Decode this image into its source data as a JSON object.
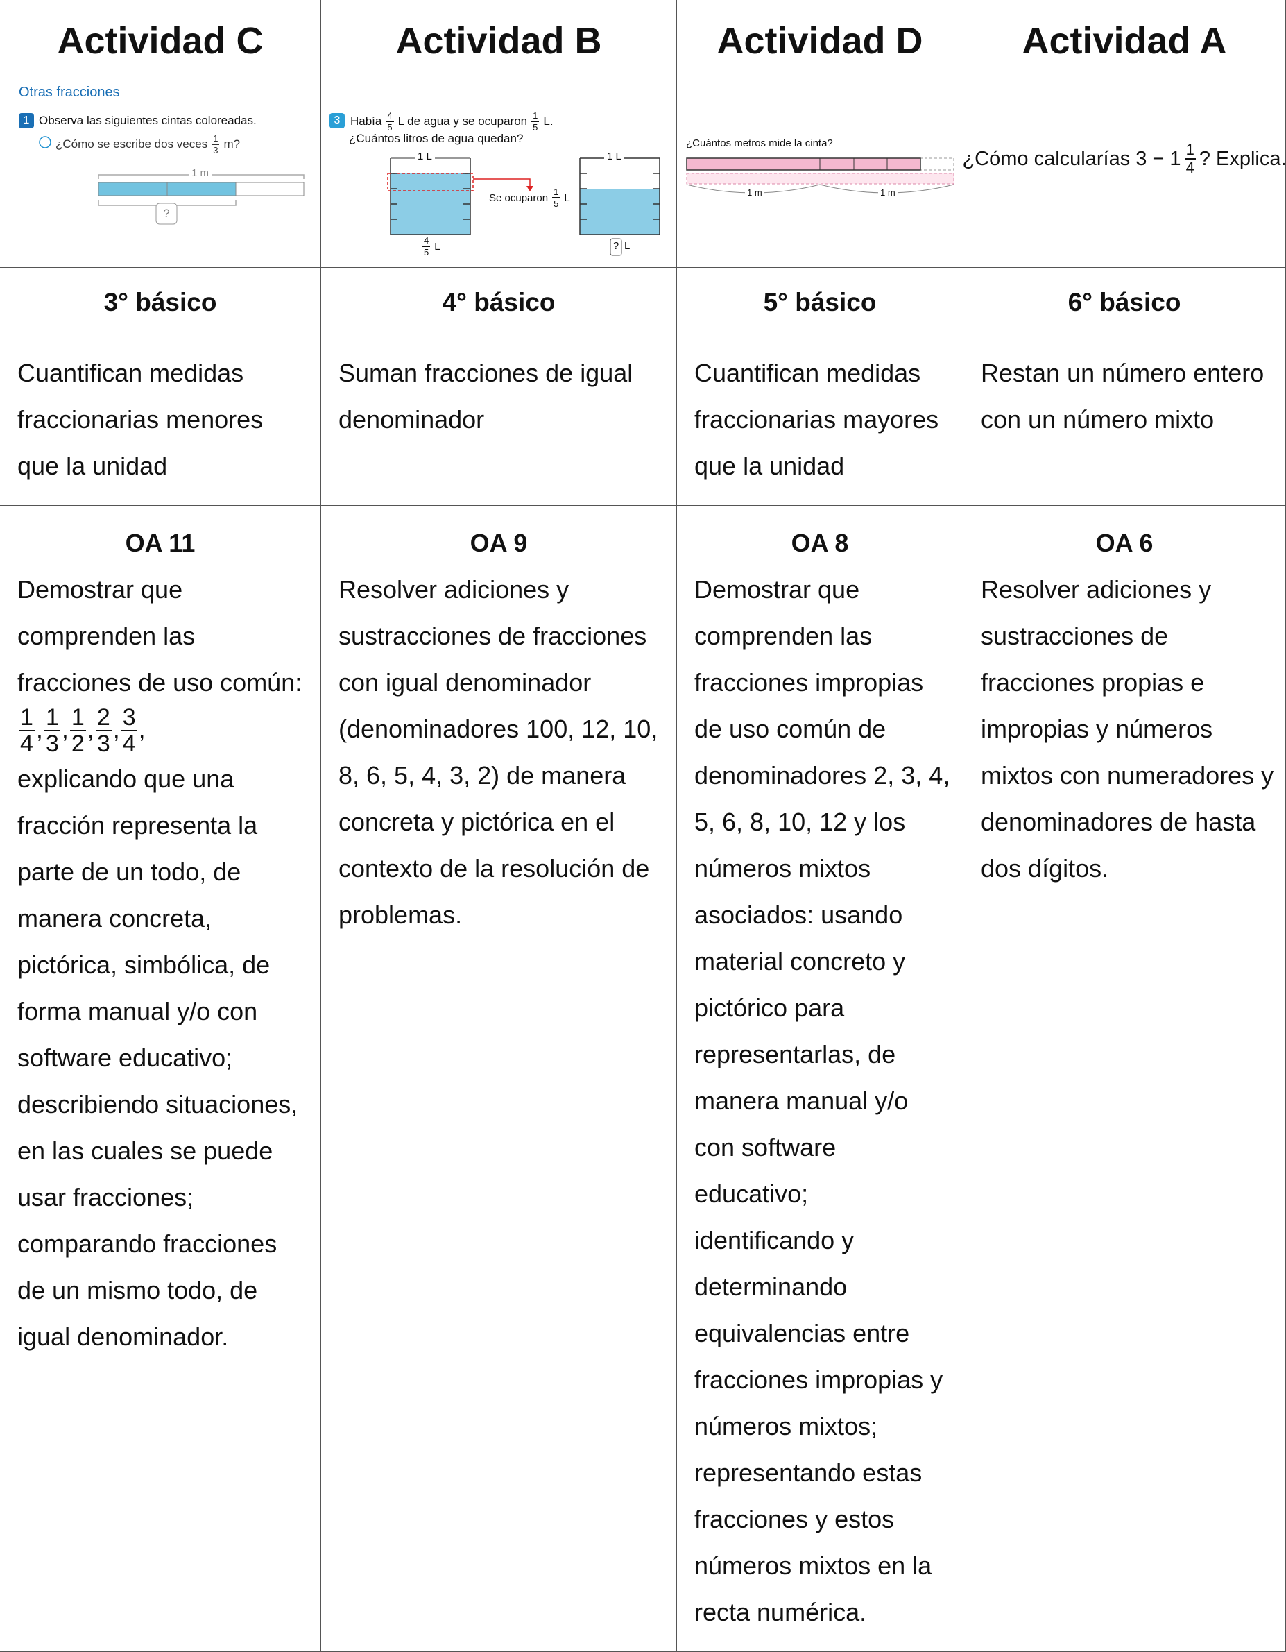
{
  "columns": [
    {
      "title": "Actividad C",
      "grade": "3° básico",
      "description": "Cuantifican medidas fraccionarias menores que la unidad",
      "oa_code": "OA 11",
      "oa_text_before": "Demostrar que comprenden las fracciones de uso común:",
      "oa_fractions": [
        {
          "numerator": "1",
          "denominator": "4"
        },
        {
          "numerator": "1",
          "denominator": "3"
        },
        {
          "numerator": "1",
          "denominator": "2"
        },
        {
          "numerator": "2",
          "denominator": "3"
        },
        {
          "numerator": "3",
          "denominator": "4"
        }
      ],
      "oa_fraction_separator": ",",
      "oa_text_after": "explicando que una fracción representa la parte de un todo, de manera concreta, pictórica, simbólica, de forma manual y/o con software educativo; describiendo situaciones, en las cuales se puede usar fracciones; comparando fracciones de un mismo todo, de igual denominador.",
      "illustration": {
        "section": "Otras fracciones",
        "step": "1",
        "instruction": "Observa las siguientes cintas coloreadas.",
        "question_before": "¿Cómo se escribe dos veces",
        "fraction": {
          "numerator": "1",
          "denominator": "3"
        },
        "question_after": "m?",
        "tape_label": "1 m",
        "unknown": "?"
      }
    },
    {
      "title": "Actividad B",
      "grade": "4° básico",
      "description": "Suman fracciones de igual denominador",
      "oa_code": "OA 9",
      "oa_text": "Resolver adiciones y sustracciones de fracciones con igual denominador (denominadores 100, 12, 10, 8, 6, 5, 4, 3, 2) de manera concreta y pictórica en el contexto de la resolución de problemas.",
      "illustration": {
        "step": "3",
        "text_1": "Había",
        "fraction_1": {
          "numerator": "4",
          "denominator": "5"
        },
        "text_2": "L de agua y se ocuparon",
        "fraction_2": {
          "numerator": "1",
          "denominator": "5"
        },
        "text_3": "L.",
        "question": "¿Cuántos litros de agua quedan?",
        "container_label": "1 L",
        "used_label": "Se ocuparon",
        "used_fraction": {
          "numerator": "1",
          "denominator": "5"
        },
        "unit": "L",
        "initial_fraction": {
          "numerator": "4",
          "denominator": "5"
        },
        "unknown": "?"
      }
    },
    {
      "title": "Actividad D",
      "grade": "5° básico",
      "description": "Cuantifican medidas fraccionarias mayores que la unidad",
      "oa_code": "OA 8",
      "oa_text": "Demostrar que comprenden las fracciones impropias de uso común de denominadores 2, 3, 4, 5, 6, 8, 10, 12 y los números mixtos asociados: usando material concreto y pictórico para representarlas, de manera manual y/o con software educativo; identificando y determinando equivalencias entre fracciones impropias y números mixtos; representando estas fracciones y estos números mixtos en la recta numérica.",
      "illustration": {
        "question": "¿Cuántos metros mide la cinta?",
        "unit_labels": [
          "1 m",
          "1 m"
        ]
      }
    },
    {
      "title": "Actividad A",
      "grade": "6° básico",
      "description": "Restan un número entero con un número mixto",
      "oa_code": "OA 6",
      "oa_text": "Resolver adiciones y sustracciones de fracciones propias e impropias y números mixtos con numeradores y denominadores de hasta dos dígitos.",
      "illustration": {
        "text_before": "¿Cómo calcularías 3 − 1",
        "fraction": {
          "numerator": "1",
          "denominator": "4"
        },
        "text_after": "? Explica."
      }
    }
  ]
}
